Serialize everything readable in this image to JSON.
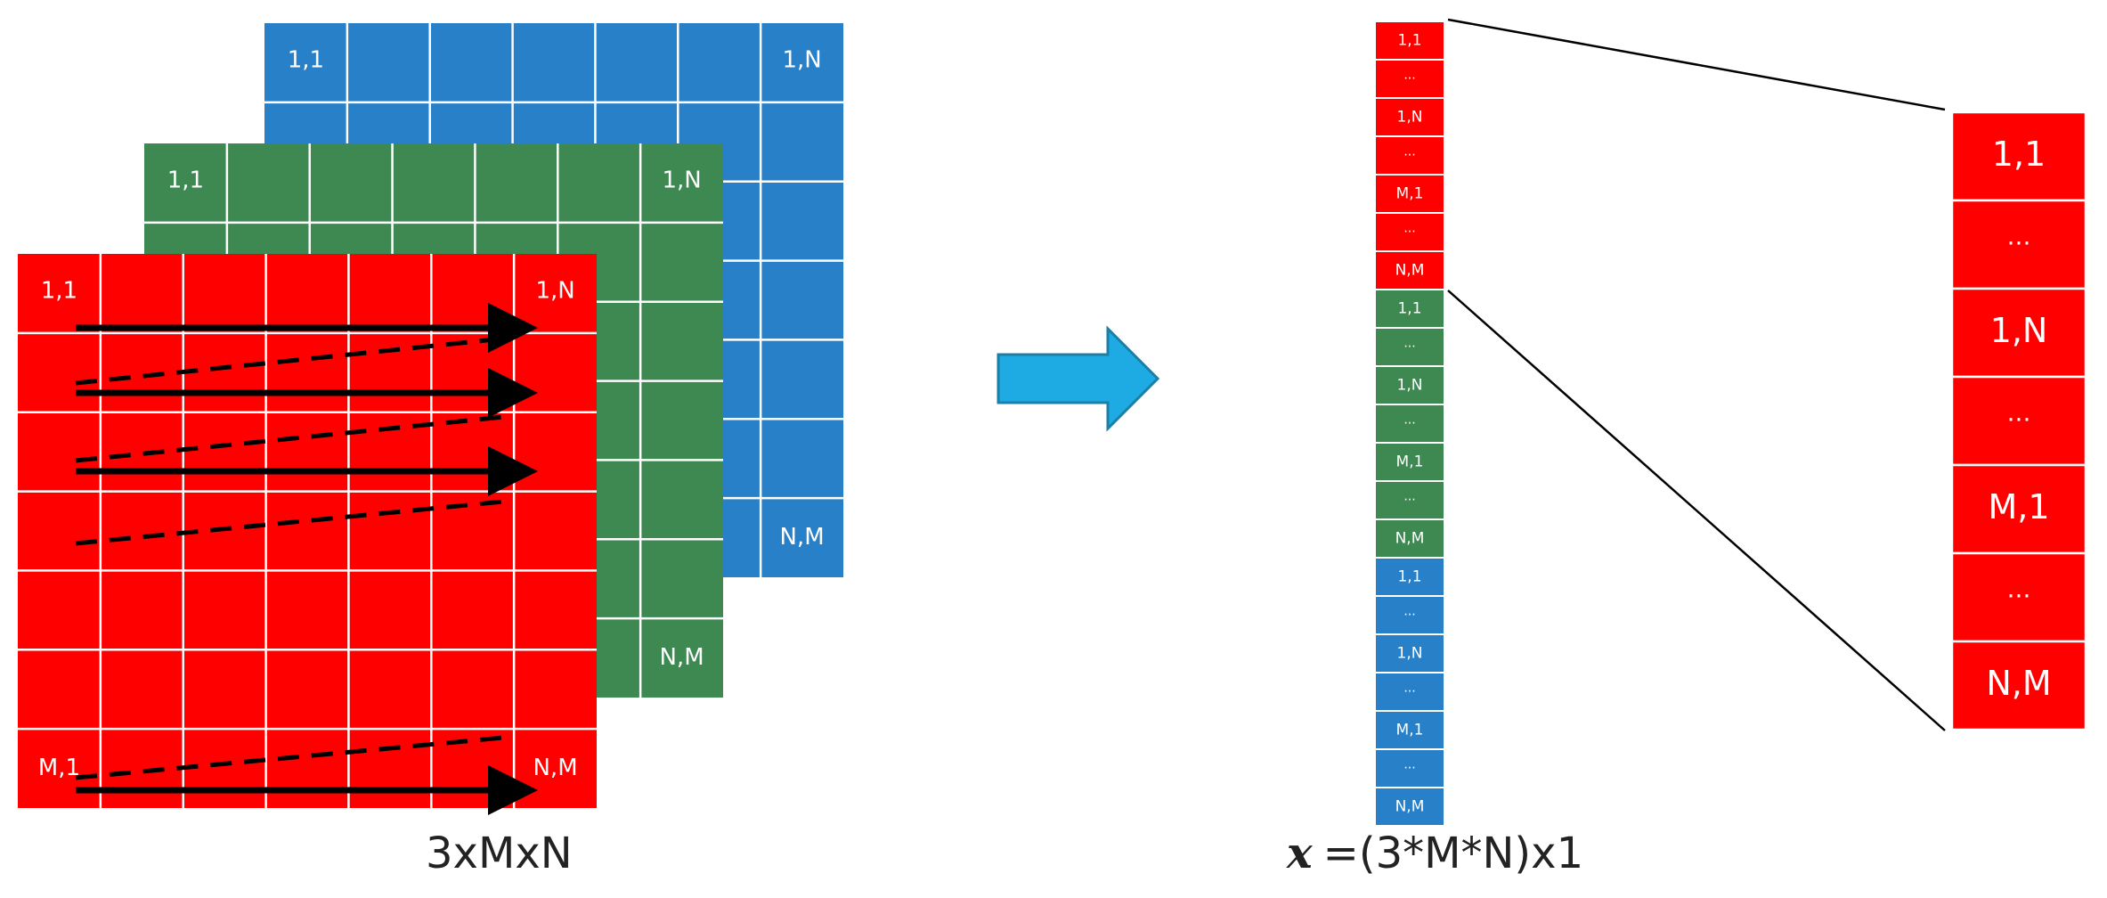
{
  "colors": {
    "red": "#ff0000",
    "green": "#3e8852",
    "blue": "#2780c8",
    "arrow": "#1eabe3",
    "arrow_stroke": "#1b7fa8",
    "grid_line": "#ffffff",
    "scan_line": "#000000"
  },
  "grid": {
    "rows": 7,
    "cols": 7,
    "layers": [
      {
        "name": "blue",
        "labels": {
          "top_left": "1,1",
          "top_right": "1,N",
          "bottom_right": "N,M"
        }
      },
      {
        "name": "green",
        "labels": {
          "top_left": "1,1",
          "top_right": "1,N",
          "bottom_right": "N,M"
        }
      },
      {
        "name": "red",
        "labels": {
          "top_left": "1,1",
          "top_right": "1,N",
          "bottom_left": "M,1",
          "bottom_right": "N,M"
        }
      }
    ]
  },
  "vector": {
    "segments": [
      {
        "name": "red",
        "cells": [
          "1,1",
          "...",
          "1,N",
          "...",
          "M,1",
          "...",
          "N,M"
        ]
      },
      {
        "name": "green",
        "cells": [
          "1,1",
          "...",
          "1,N",
          "...",
          "M,1",
          "...",
          "N,M"
        ]
      },
      {
        "name": "blue",
        "cells": [
          "1,1",
          "...",
          "1,N",
          "...",
          "M,1",
          "...",
          "N,M"
        ]
      }
    ]
  },
  "zoom": {
    "cells": [
      "1,1",
      "...",
      "1,N",
      "...",
      "M,1",
      "...",
      "N,M"
    ]
  },
  "captions": {
    "left": "3xMxN",
    "right_symbol": "x",
    "right_text": "=(3*M*N)x1"
  }
}
